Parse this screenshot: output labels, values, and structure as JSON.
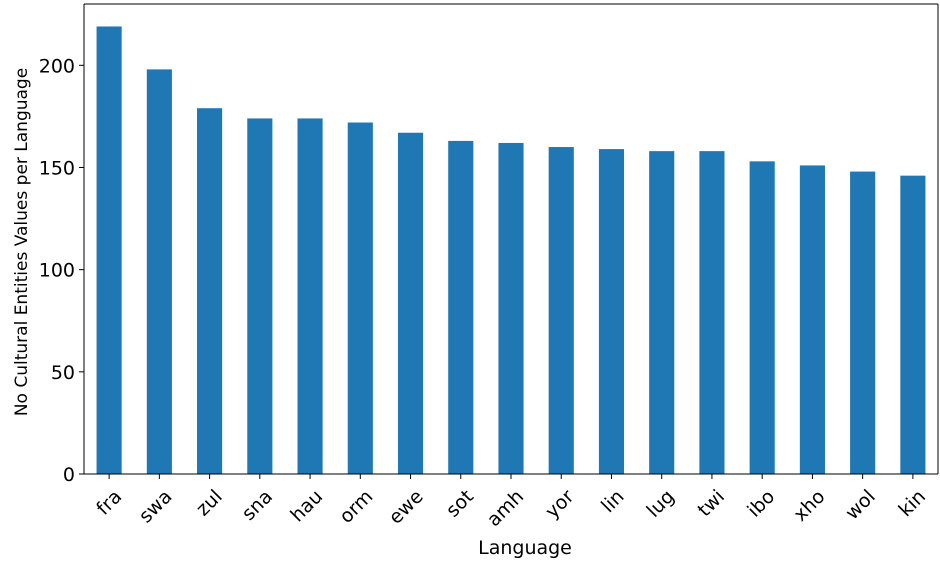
{
  "chart_data": {
    "type": "bar",
    "title": "",
    "xlabel": "Language",
    "ylabel": "No Cultural Entities Values per Language",
    "categories": [
      "fra",
      "swa",
      "zul",
      "sna",
      "hau",
      "orm",
      "ewe",
      "sot",
      "amh",
      "yor",
      "lin",
      "lug",
      "twi",
      "ibo",
      "xho",
      "wol",
      "kin"
    ],
    "values": [
      219,
      198,
      179,
      174,
      174,
      172,
      167,
      163,
      162,
      160,
      159,
      158,
      158,
      153,
      151,
      148,
      146
    ],
    "ylim": [
      0,
      230
    ],
    "yticks": [
      0,
      50,
      100,
      150,
      200
    ],
    "color": "#1f77b4",
    "grid": false,
    "legend": "none"
  }
}
